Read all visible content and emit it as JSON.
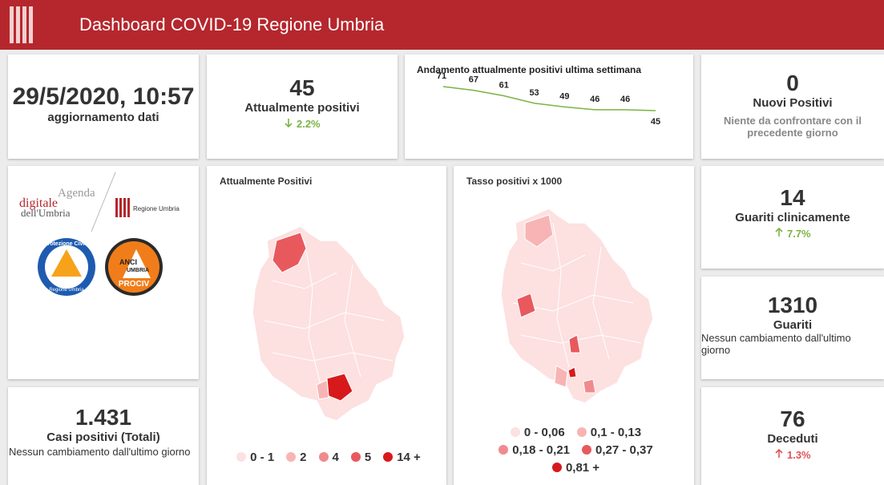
{
  "header": {
    "title": "Dashboard COVID-19 Regione Umbria"
  },
  "update": {
    "value": "29/5/2020, 10:57",
    "label": "aggiornamento dati"
  },
  "active": {
    "value": "45",
    "label": "Attualmente positivi",
    "change": "2.2%"
  },
  "sparkline": {
    "type": "line",
    "title": "Andamento attualmente positivi ultima settimana",
    "values": [
      71,
      67,
      61,
      53,
      49,
      46,
      46,
      45
    ],
    "color": "#7cb342"
  },
  "new_cases": {
    "value": "0",
    "label": "Nuovi Positivi",
    "note": "Niente da confrontare con il precedente giorno"
  },
  "logos": {
    "agenda": [
      "Agenda",
      "digitale",
      "dell'Umbria"
    ],
    "regione": "Regione Umbria",
    "protezione": [
      "Protezione Civile",
      "Regione Umbria"
    ],
    "anci": [
      "ANCI",
      "UMBRIA",
      "PROCIV"
    ]
  },
  "map_active": {
    "title": "Attualmente Positivi",
    "legend": [
      {
        "label": "0 - 1",
        "color": "#fde0e0"
      },
      {
        "label": "2",
        "color": "#f8b4b4"
      },
      {
        "label": "4",
        "color": "#f08b8d"
      },
      {
        "label": "5",
        "color": "#e8595e"
      },
      {
        "label": "14 +",
        "color": "#d7191c"
      }
    ]
  },
  "map_rate": {
    "title": "Tasso positivi x 1000",
    "legend": [
      {
        "label": "0 - 0,06",
        "color": "#fde0e0"
      },
      {
        "label": "0,1 - 0,13",
        "color": "#f8b4b4"
      },
      {
        "label": "0,18 - 0,21",
        "color": "#f08b8d"
      },
      {
        "label": "0,27 - 0,37",
        "color": "#e8595e"
      },
      {
        "label": "0,81 +",
        "color": "#d7191c"
      }
    ]
  },
  "recovered_clinical": {
    "value": "14",
    "label": "Guariti clinicamente",
    "change": "7.7%"
  },
  "recovered": {
    "value": "1310",
    "label": "Guariti",
    "note": "Nessun cambiamento dall'ultimo giorno"
  },
  "total": {
    "value": "1.431",
    "label": "Casi positivi (Totali)",
    "note": "Nessun cambiamento dall'ultimo giorno"
  },
  "deaths": {
    "value": "76",
    "label": "Deceduti",
    "change": "1.3%"
  }
}
